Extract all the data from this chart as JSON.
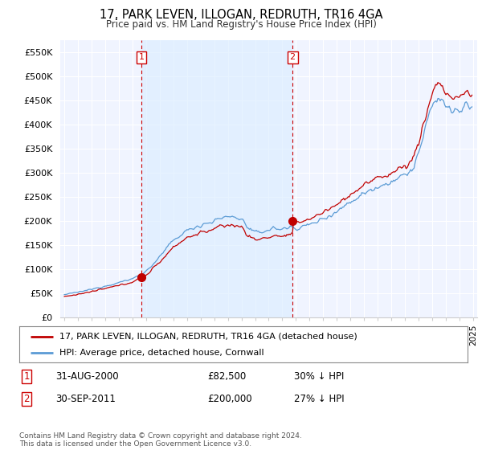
{
  "title": "17, PARK LEVEN, ILLOGAN, REDRUTH, TR16 4GA",
  "subtitle": "Price paid vs. HM Land Registry's House Price Index (HPI)",
  "ylim": [
    0,
    575000
  ],
  "yticks": [
    0,
    50000,
    100000,
    150000,
    200000,
    250000,
    300000,
    350000,
    400000,
    450000,
    500000,
    550000
  ],
  "ytick_labels": [
    "£0",
    "£50K",
    "£100K",
    "£150K",
    "£200K",
    "£250K",
    "£300K",
    "£350K",
    "£400K",
    "£450K",
    "£500K",
    "£550K"
  ],
  "hpi_color": "#5b9bd5",
  "price_color": "#c00000",
  "fill_color": "#ddeeff",
  "vline_color": "#cc0000",
  "marker1_date": 2000.667,
  "marker1_price": 82500,
  "marker2_date": 2011.75,
  "marker2_price": 200000,
  "vline1_x": 2000.667,
  "vline2_x": 2011.75,
  "legend_line1": "17, PARK LEVEN, ILLOGAN, REDRUTH, TR16 4GA (detached house)",
  "legend_line2": "HPI: Average price, detached house, Cornwall",
  "table_row1": [
    "1",
    "31-AUG-2000",
    "£82,500",
    "30% ↓ HPI"
  ],
  "table_row2": [
    "2",
    "30-SEP-2011",
    "£200,000",
    "27% ↓ HPI"
  ],
  "footnote": "Contains HM Land Registry data © Crown copyright and database right 2024.\nThis data is licensed under the Open Government Licence v3.0.",
  "background_color": "#ffffff",
  "xmin": 1995.0,
  "xmax": 2025.0
}
